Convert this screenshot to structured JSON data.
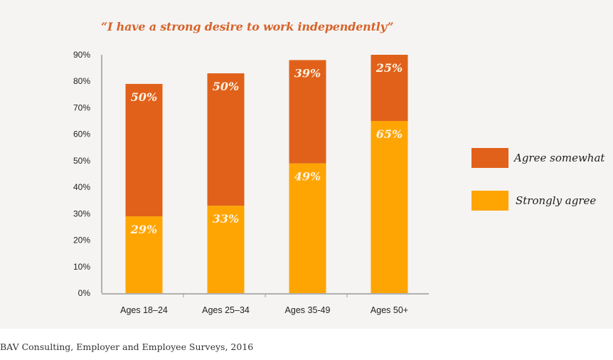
{
  "chart_data": {
    "type": "bar",
    "stacked": true,
    "title": "“I have a strong desire to work independently”",
    "xlabel": "",
    "ylabel": "",
    "ylim": [
      0,
      90
    ],
    "yticks": [
      0,
      10,
      20,
      30,
      40,
      50,
      60,
      70,
      80,
      90
    ],
    "ytick_labels": [
      "0%",
      "10%",
      "20%",
      "30%",
      "40%",
      "50%",
      "60%",
      "70%",
      "80%",
      "90%"
    ],
    "categories": [
      "Ages 18–24",
      "Ages 25–34",
      "Ages 35-49",
      "Ages 50+"
    ],
    "series": [
      {
        "name": "Strongly agree",
        "color": "#fea503",
        "values": [
          29,
          33,
          49,
          65
        ],
        "labels": [
          "29%",
          "33%",
          "49%",
          "65%"
        ]
      },
      {
        "name": "Agree somewhat",
        "color": "#e1611a",
        "values": [
          50,
          50,
          39,
          25
        ],
        "labels": [
          "50%",
          "50%",
          "39%",
          "25%"
        ]
      }
    ],
    "legend": {
      "placement": "right",
      "order": [
        "Agree somewhat",
        "Strongly agree"
      ]
    },
    "grid": false
  },
  "source": "BAV Consulting, Employer and Employee Surveys, 2016"
}
